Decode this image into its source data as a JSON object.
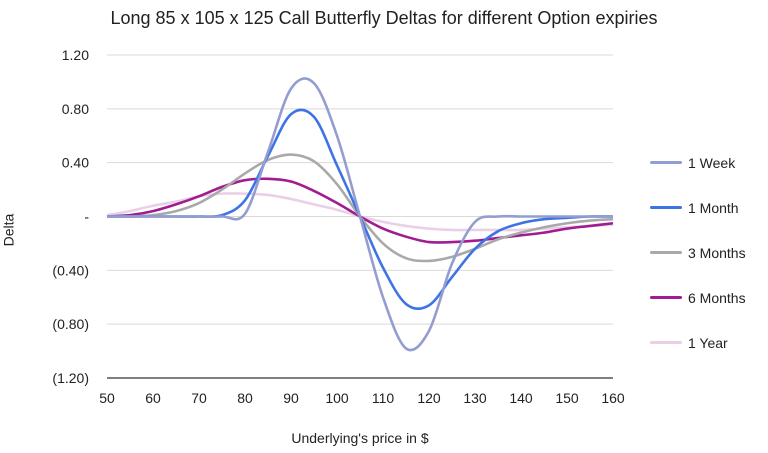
{
  "chart_data": {
    "type": "line",
    "title": "Long 85 x 105 x 125 Call Butterfly Deltas for different Option expiries",
    "xlabel": "Underlying's price in $",
    "ylabel": "Delta",
    "xlim": [
      50,
      160
    ],
    "ylim": [
      -1.2,
      1.2
    ],
    "x_ticks": [
      "50",
      "60",
      "70",
      "80",
      "90",
      "100",
      "110",
      "120",
      "130",
      "140",
      "150",
      "160"
    ],
    "y_ticks": [
      {
        "value": 1.2,
        "label": "1.20"
      },
      {
        "value": 0.8,
        "label": "0.80"
      },
      {
        "value": 0.4,
        "label": "0.40"
      },
      {
        "value": 0.0,
        "label": "-"
      },
      {
        "value": -0.4,
        "label": "(0.40)"
      },
      {
        "value": -0.8,
        "label": "(0.80)"
      },
      {
        "value": -1.2,
        "label": "(1.20)"
      }
    ],
    "grid": "horizontal",
    "legend_position": "right",
    "x": [
      50,
      55,
      60,
      65,
      70,
      75,
      80,
      85,
      90,
      95,
      100,
      105,
      110,
      115,
      120,
      125,
      130,
      135,
      140,
      145,
      150,
      155,
      160
    ],
    "series": [
      {
        "name": "1 Week",
        "color": "#939dcf",
        "values": [
          0,
          0,
          0,
          0,
          0,
          0,
          0.02,
          0.48,
          0.95,
          0.99,
          0.6,
          0,
          -0.6,
          -0.98,
          -0.85,
          -0.35,
          -0.04,
          0,
          0,
          0,
          0,
          0,
          0
        ]
      },
      {
        "name": "1 Month",
        "color": "#3e73e6",
        "values": [
          0,
          0,
          0,
          0,
          0,
          0.01,
          0.12,
          0.45,
          0.76,
          0.74,
          0.38,
          0,
          -0.38,
          -0.65,
          -0.66,
          -0.45,
          -0.24,
          -0.11,
          -0.05,
          -0.02,
          -0.01,
          0,
          0
        ]
      },
      {
        "name": "3 Months",
        "color": "#a9a9a9",
        "values": [
          0,
          0,
          0.01,
          0.04,
          0.1,
          0.2,
          0.32,
          0.42,
          0.46,
          0.41,
          0.24,
          0,
          -0.2,
          -0.31,
          -0.33,
          -0.3,
          -0.24,
          -0.17,
          -0.12,
          -0.08,
          -0.05,
          -0.03,
          -0.02
        ]
      },
      {
        "name": "6 Months",
        "color": "#a01c90",
        "values": [
          0,
          0.01,
          0.04,
          0.09,
          0.15,
          0.22,
          0.27,
          0.28,
          0.26,
          0.19,
          0.1,
          0,
          -0.09,
          -0.15,
          -0.19,
          -0.19,
          -0.18,
          -0.16,
          -0.14,
          -0.12,
          -0.09,
          -0.07,
          -0.05
        ]
      },
      {
        "name": "1 Year",
        "color": "#e9d0e6",
        "values": [
          0.01,
          0.04,
          0.08,
          0.11,
          0.15,
          0.17,
          0.17,
          0.16,
          0.13,
          0.09,
          0.05,
          0,
          -0.04,
          -0.07,
          -0.09,
          -0.1,
          -0.1,
          -0.1,
          -0.1,
          -0.09,
          -0.08,
          -0.07,
          -0.06
        ]
      }
    ]
  }
}
